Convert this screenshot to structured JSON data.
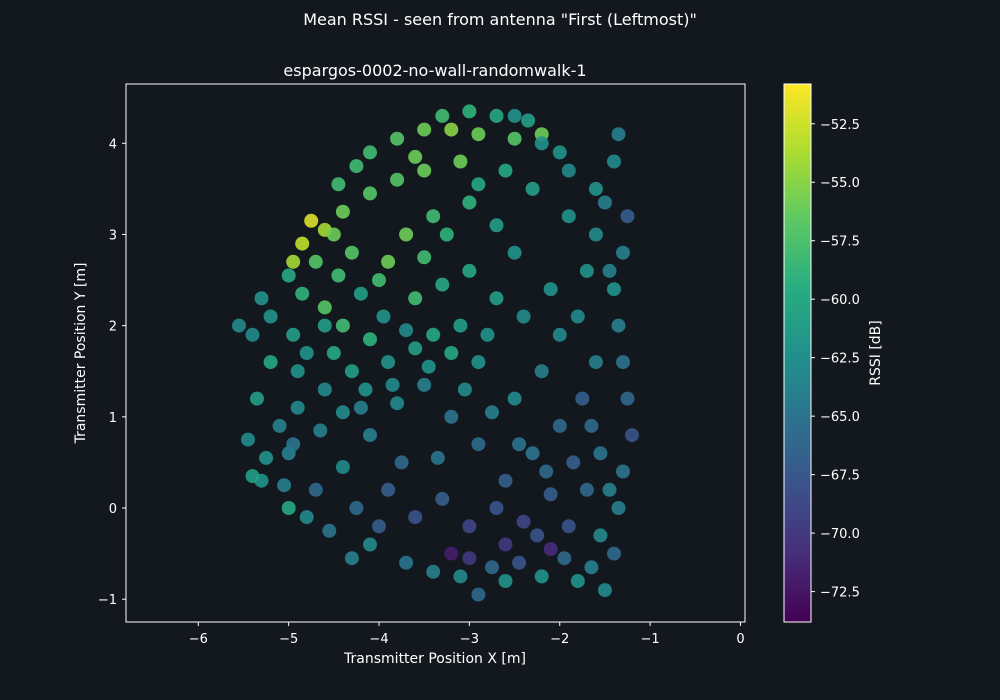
{
  "figure": {
    "suptitle": "Mean RSSI - seen from antenna \"First (Leftmost)\""
  },
  "chart_data": {
    "type": "scatter",
    "title": "espargos-0002-no-wall-randomwalk-1",
    "xlabel": "Transmitter Position X [m]",
    "ylabel": "Transmitter Position Y [m]",
    "xlim": [
      -6.8,
      0.05
    ],
    "ylim": [
      -1.25,
      4.65
    ],
    "xticks": [
      -6,
      -5,
      -4,
      -3,
      -2,
      -1,
      0
    ],
    "yticks": [
      -1,
      0,
      1,
      2,
      3,
      4
    ],
    "colorbar": {
      "label": "RSSI [dB]",
      "range": [
        -73.8,
        -50.8
      ],
      "ticks": [
        -52.5,
        -55.0,
        -57.5,
        -60.0,
        -62.5,
        -65.0,
        -67.5,
        -70.0,
        -72.5
      ],
      "colormap": "viridis"
    },
    "grid": false,
    "series": [
      {
        "points": [
          [
            -5.55,
            2.0,
            -63
          ],
          [
            -5.3,
            2.3,
            -62
          ],
          [
            -5.0,
            2.55,
            -60
          ],
          [
            -4.7,
            2.7,
            -57
          ],
          [
            -4.45,
            2.55,
            -58
          ],
          [
            -4.2,
            2.35,
            -61
          ],
          [
            -3.95,
            2.1,
            -62
          ],
          [
            -3.7,
            1.95,
            -63
          ],
          [
            -4.75,
            3.15,
            -52
          ],
          [
            -4.85,
            2.9,
            -53
          ],
          [
            -4.95,
            2.7,
            -54
          ],
          [
            -4.6,
            3.05,
            -54
          ],
          [
            -4.4,
            3.25,
            -56
          ],
          [
            -4.1,
            3.45,
            -57
          ],
          [
            -3.8,
            3.6,
            -57
          ],
          [
            -3.5,
            3.7,
            -56
          ],
          [
            -3.1,
            3.8,
            -56
          ],
          [
            -4.1,
            3.9,
            -58
          ],
          [
            -3.8,
            4.05,
            -57
          ],
          [
            -3.5,
            4.15,
            -56
          ],
          [
            -3.2,
            4.15,
            -55
          ],
          [
            -2.9,
            4.1,
            -56
          ],
          [
            -2.5,
            4.05,
            -57
          ],
          [
            -2.2,
            4.1,
            -56
          ],
          [
            -3.9,
            2.7,
            -56
          ],
          [
            -3.7,
            3.0,
            -56
          ],
          [
            -3.4,
            3.2,
            -58
          ],
          [
            -3.0,
            3.35,
            -59
          ],
          [
            -2.7,
            3.1,
            -61
          ],
          [
            -2.5,
            2.8,
            -62
          ],
          [
            -4.6,
            2.2,
            -57
          ],
          [
            -4.4,
            2.0,
            -58
          ],
          [
            -4.1,
            1.85,
            -59
          ],
          [
            -3.6,
            1.75,
            -61
          ],
          [
            -3.2,
            1.7,
            -60
          ],
          [
            -2.9,
            1.6,
            -62
          ],
          [
            -2.5,
            4.3,
            -62
          ],
          [
            -2.2,
            4.0,
            -62
          ],
          [
            -1.9,
            3.7,
            -63
          ],
          [
            -1.6,
            3.5,
            -62
          ],
          [
            -1.4,
            3.8,
            -63
          ],
          [
            -1.35,
            4.1,
            -64
          ],
          [
            -1.25,
            3.2,
            -67
          ],
          [
            -1.3,
            2.8,
            -64
          ],
          [
            -1.4,
            2.4,
            -62
          ],
          [
            -1.35,
            2.0,
            -64
          ],
          [
            -1.3,
            1.6,
            -65
          ],
          [
            -1.25,
            1.2,
            -66
          ],
          [
            -1.2,
            0.8,
            -68
          ],
          [
            -1.3,
            0.4,
            -65
          ],
          [
            -1.35,
            0.0,
            -64
          ],
          [
            -1.4,
            -0.5,
            -66
          ],
          [
            -1.5,
            -0.9,
            -63
          ],
          [
            -1.8,
            -0.8,
            -62
          ],
          [
            -2.2,
            -0.75,
            -62
          ],
          [
            -2.6,
            -0.8,
            -62
          ],
          [
            -2.9,
            -0.95,
            -66
          ],
          [
            -3.1,
            -0.75,
            -63
          ],
          [
            -3.4,
            -0.7,
            -64
          ],
          [
            -3.7,
            -0.6,
            -65
          ],
          [
            -4.1,
            -0.4,
            -63
          ],
          [
            -4.3,
            -0.55,
            -64
          ],
          [
            -3.2,
            -0.5,
            -72
          ],
          [
            -2.6,
            -0.4,
            -70
          ],
          [
            -2.1,
            -0.45,
            -71
          ],
          [
            -5.0,
            0.0,
            -60
          ],
          [
            -5.3,
            0.3,
            -62
          ],
          [
            -5.45,
            0.75,
            -63
          ],
          [
            -5.35,
            1.2,
            -61
          ],
          [
            -5.2,
            1.6,
            -60
          ],
          [
            -5.0,
            0.6,
            -64
          ],
          [
            -4.7,
            0.2,
            -66
          ],
          [
            -4.4,
            0.45,
            -63
          ],
          [
            -4.1,
            0.8,
            -64
          ],
          [
            -3.8,
            1.15,
            -63
          ],
          [
            -3.5,
            1.35,
            -64
          ],
          [
            -3.2,
            1.0,
            -65
          ],
          [
            -2.9,
            0.7,
            -66
          ],
          [
            -2.6,
            0.3,
            -67
          ],
          [
            -2.3,
            0.6,
            -65
          ],
          [
            -2.0,
            0.9,
            -66
          ],
          [
            -1.75,
            1.2,
            -67
          ],
          [
            -1.6,
            1.6,
            -64
          ],
          [
            -1.8,
            2.1,
            -63
          ],
          [
            -2.1,
            2.4,
            -62
          ],
          [
            -2.4,
            2.1,
            -63
          ],
          [
            -2.7,
            2.3,
            -61
          ],
          [
            -3.0,
            2.6,
            -60
          ],
          [
            -3.3,
            2.45,
            -60
          ],
          [
            -3.6,
            2.3,
            -58
          ],
          [
            -4.0,
            2.5,
            -58
          ],
          [
            -4.3,
            2.8,
            -57
          ],
          [
            -4.5,
            3.0,
            -56
          ],
          [
            -3.9,
            0.2,
            -67
          ],
          [
            -3.6,
            -0.1,
            -68
          ],
          [
            -3.3,
            0.1,
            -67
          ],
          [
            -3.0,
            -0.2,
            -69
          ],
          [
            -2.7,
            0.0,
            -68
          ],
          [
            -2.4,
            -0.15,
            -69
          ],
          [
            -2.1,
            0.15,
            -67
          ],
          [
            -1.9,
            -0.2,
            -68
          ],
          [
            -1.7,
            0.2,
            -66
          ],
          [
            -4.6,
            1.3,
            -63
          ],
          [
            -4.8,
            1.7,
            -62
          ],
          [
            -4.6,
            2.0,
            -61
          ],
          [
            -4.9,
            1.1,
            -63
          ],
          [
            -5.1,
            0.9,
            -64
          ],
          [
            -3.35,
            0.55,
            -65
          ],
          [
            -3.75,
            0.5,
            -66
          ],
          [
            -4.2,
            1.1,
            -64
          ],
          [
            -2.5,
            1.2,
            -63
          ],
          [
            -2.2,
            1.5,
            -64
          ],
          [
            -2.0,
            1.9,
            -63
          ],
          [
            -1.7,
            2.6,
            -62
          ],
          [
            -1.6,
            3.0,
            -63
          ],
          [
            -1.9,
            3.2,
            -62
          ],
          [
            -2.3,
            3.5,
            -61
          ],
          [
            -2.6,
            3.7,
            -60
          ],
          [
            -2.9,
            3.55,
            -60
          ],
          [
            -3.25,
            3.0,
            -59
          ],
          [
            -3.5,
            2.75,
            -58
          ],
          [
            -4.85,
            2.35,
            -59
          ],
          [
            -4.95,
            1.9,
            -61
          ],
          [
            -5.2,
            2.1,
            -62
          ],
          [
            -5.4,
            1.9,
            -63
          ],
          [
            -4.45,
            3.55,
            -58
          ],
          [
            -4.25,
            3.75,
            -58
          ],
          [
            -3.6,
            3.85,
            -56
          ],
          [
            -3.3,
            4.3,
            -58
          ],
          [
            -3.0,
            4.35,
            -59
          ],
          [
            -2.7,
            4.3,
            -60
          ],
          [
            -2.35,
            4.25,
            -61
          ],
          [
            -2.0,
            3.9,
            -62
          ],
          [
            -1.5,
            3.35,
            -64
          ],
          [
            -1.45,
            2.6,
            -64
          ],
          [
            -2.8,
            1.9,
            -62
          ],
          [
            -3.1,
            2.0,
            -61
          ],
          [
            -3.4,
            1.9,
            -60
          ],
          [
            -3.9,
            1.6,
            -62
          ],
          [
            -4.3,
            1.5,
            -61
          ],
          [
            -4.5,
            1.7,
            -60
          ],
          [
            -4.9,
            1.5,
            -62
          ],
          [
            -5.4,
            0.35,
            -61
          ],
          [
            -5.25,
            0.55,
            -62
          ],
          [
            -5.05,
            0.25,
            -64
          ],
          [
            -4.8,
            -0.1,
            -63
          ],
          [
            -4.55,
            -0.25,
            -65
          ],
          [
            -4.25,
            0.0,
            -66
          ],
          [
            -4.0,
            -0.2,
            -67
          ],
          [
            -3.0,
            -0.55,
            -70
          ],
          [
            -2.75,
            -0.65,
            -66
          ],
          [
            -2.45,
            -0.6,
            -68
          ],
          [
            -2.25,
            -0.3,
            -68
          ],
          [
            -1.95,
            -0.55,
            -66
          ],
          [
            -1.65,
            -0.65,
            -64
          ],
          [
            -1.55,
            -0.3,
            -63
          ],
          [
            -1.45,
            0.2,
            -64
          ],
          [
            -1.55,
            0.6,
            -65
          ],
          [
            -1.65,
            0.9,
            -66
          ],
          [
            -1.85,
            0.5,
            -67
          ],
          [
            -2.15,
            0.4,
            -66
          ],
          [
            -2.45,
            0.7,
            -65
          ],
          [
            -2.75,
            1.05,
            -64
          ],
          [
            -3.05,
            1.3,
            -63
          ],
          [
            -3.45,
            1.55,
            -62
          ],
          [
            -3.85,
            1.35,
            -63
          ],
          [
            -4.15,
            1.3,
            -62
          ],
          [
            -4.4,
            1.05,
            -63
          ],
          [
            -4.65,
            0.85,
            -64
          ],
          [
            -4.95,
            0.7,
            -65
          ]
        ]
      }
    ]
  }
}
